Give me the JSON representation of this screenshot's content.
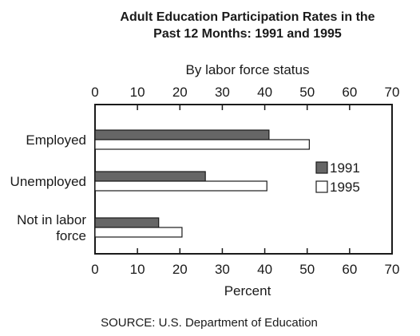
{
  "chart_data": {
    "type": "bar",
    "orientation": "horizontal",
    "title": [
      "Adult Education Participation Rates in the",
      "Past 12 Months: 1991 and 1995"
    ],
    "subtitle": "By labor force status",
    "xlabel": "Percent",
    "xlim": [
      0,
      70
    ],
    "xticks": [
      "0",
      "10",
      "20",
      "30",
      "40",
      "50",
      "60",
      "70"
    ],
    "categories": [
      [
        "Employed"
      ],
      [
        "Unemployed"
      ],
      [
        "Not in labor",
        "force"
      ]
    ],
    "series": [
      {
        "name": "1991",
        "color": "#666666",
        "values": [
          41,
          26,
          15
        ]
      },
      {
        "name": "1995",
        "color": "#ffffff",
        "values": [
          50.5,
          40.5,
          20.5
        ]
      }
    ],
    "legend_position": "right",
    "grid": false,
    "source": "SOURCE: U.S. Department of Education"
  }
}
